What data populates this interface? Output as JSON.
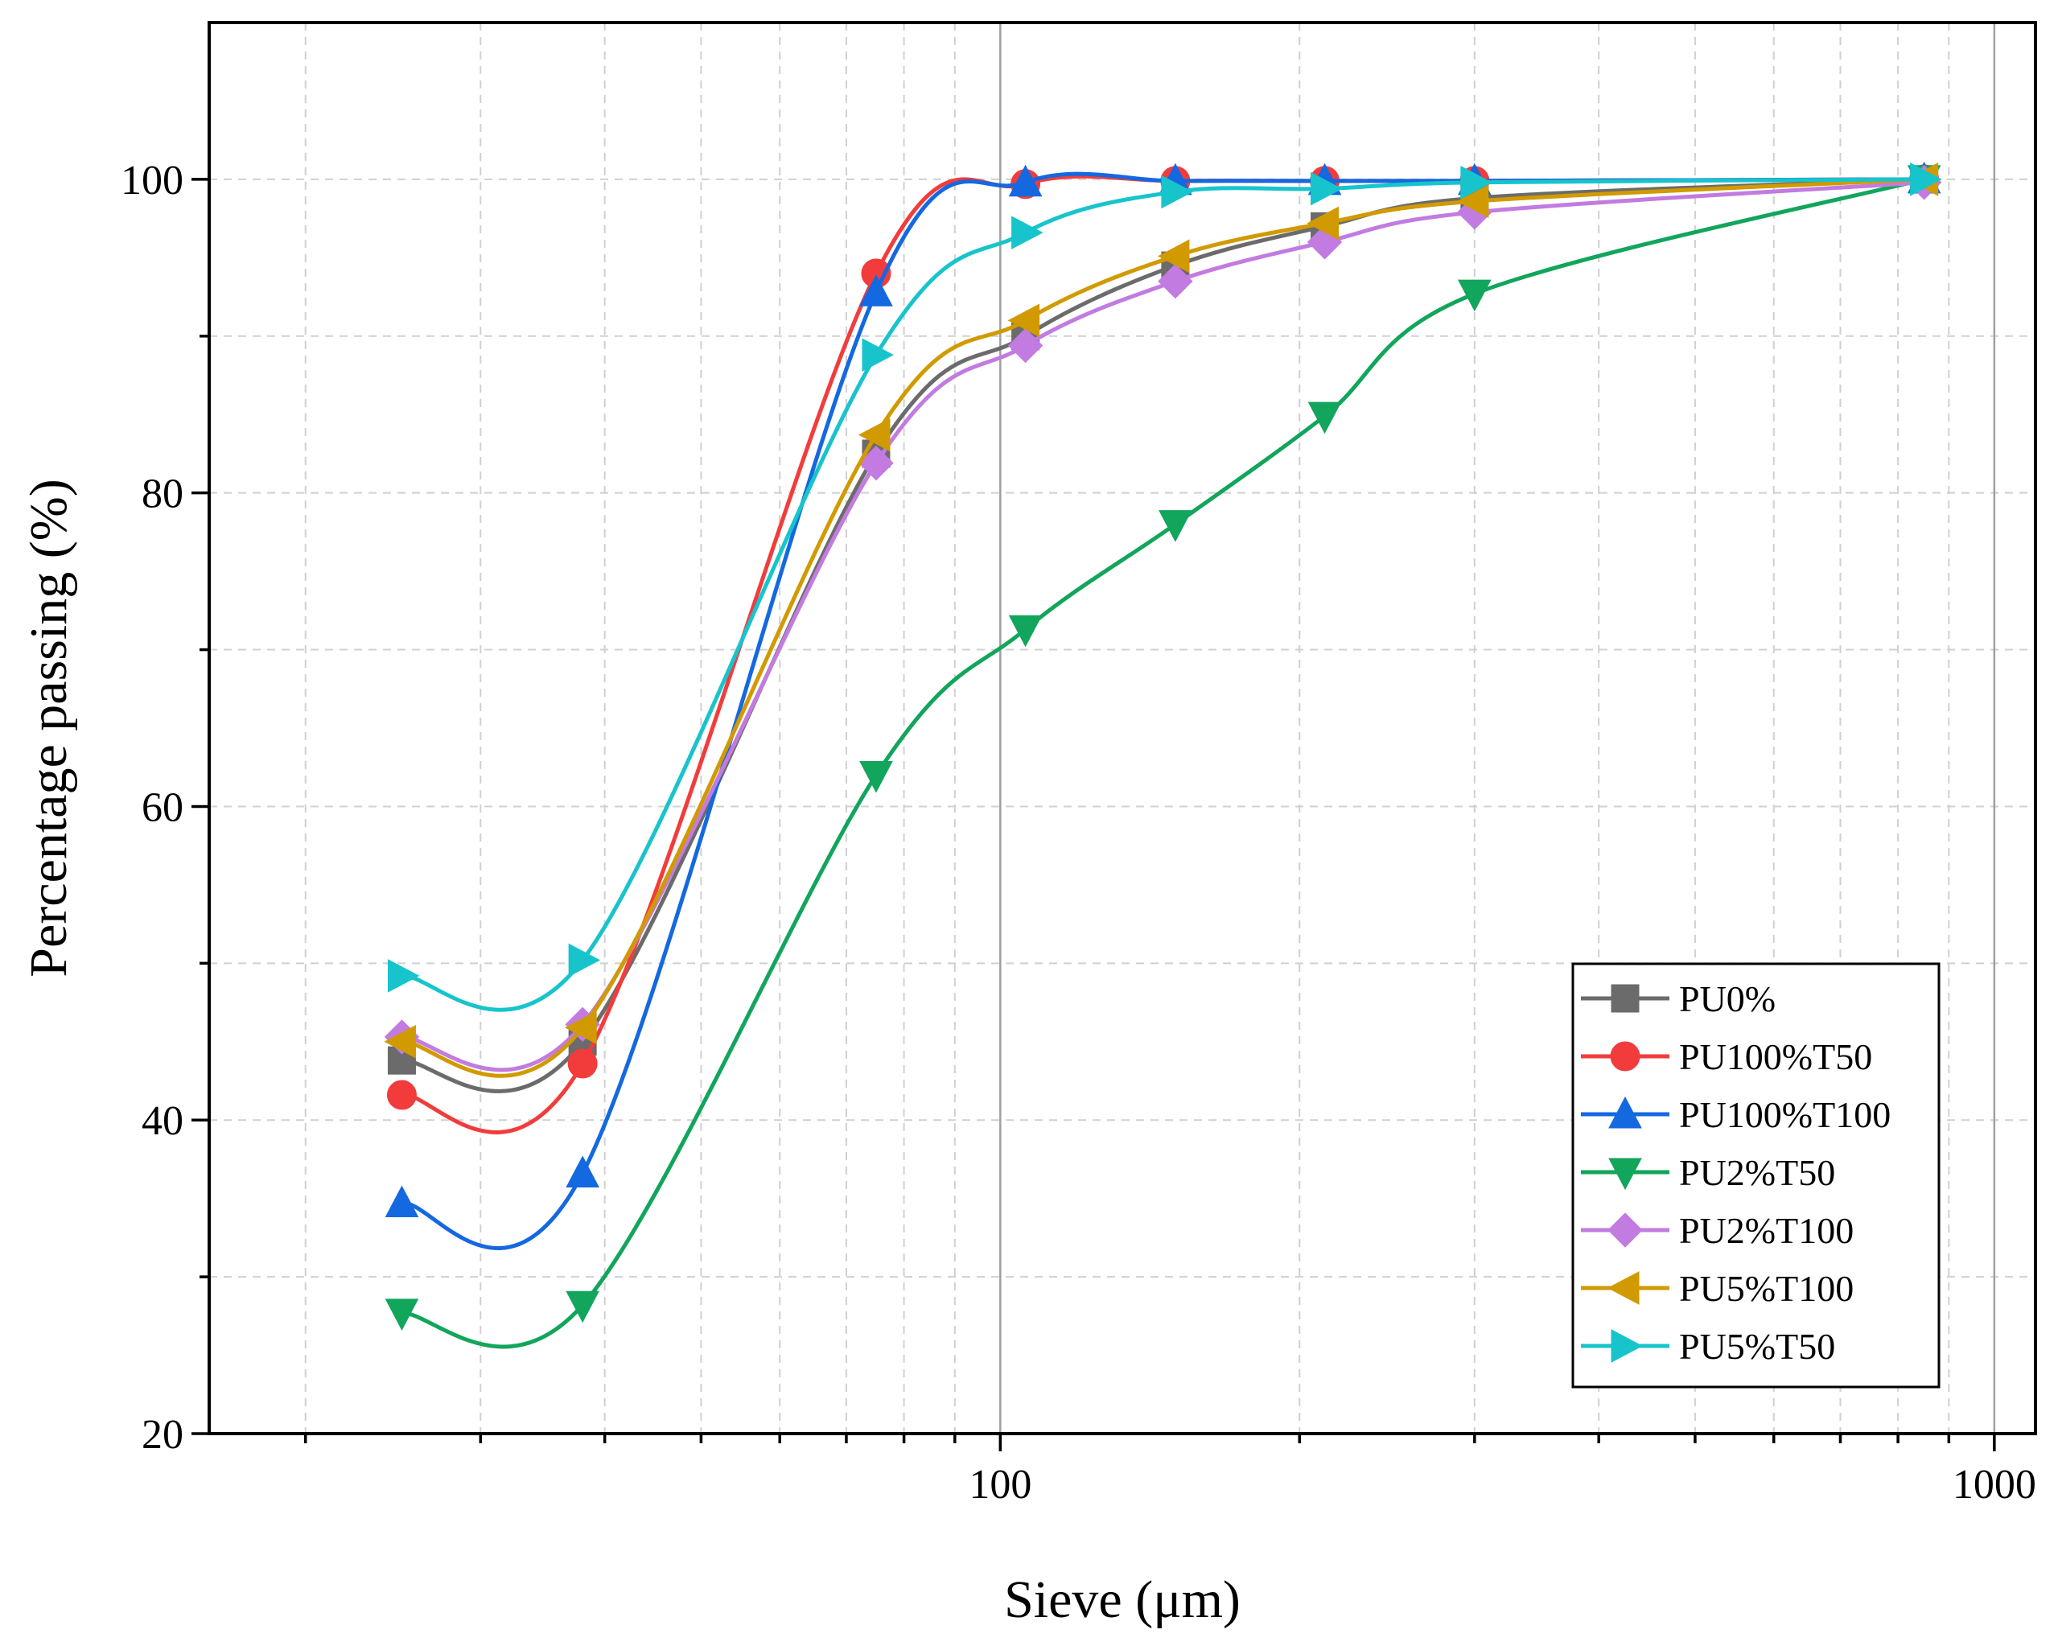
{
  "chart_data": {
    "type": "line",
    "title": "",
    "xlabel": "Sieve (μm)",
    "ylabel": "Percentage passing (%)",
    "xscale": "log",
    "xlim": [
      16,
      1100
    ],
    "ylim": [
      20,
      110
    ],
    "x_ticks": [
      100,
      1000
    ],
    "x_tick_labels": [
      "100",
      "1000"
    ],
    "y_ticks": [
      20,
      40,
      60,
      80,
      100
    ],
    "y_tick_labels": [
      "20",
      "40",
      "60",
      "80",
      "100"
    ],
    "grid": true,
    "legend_position": "bottom-right",
    "x": [
      25,
      38,
      75,
      106,
      150,
      212,
      300,
      850
    ],
    "series": [
      {
        "name": "PU0%",
        "marker": "square",
        "color": "#6b6b6b",
        "values": [
          43.8,
          45.0,
          82.5,
          90.0,
          94.5,
          97.0,
          98.8,
          100.0
        ]
      },
      {
        "name": "PU100%T50",
        "marker": "circle",
        "color": "#f23c3c",
        "values": [
          41.6,
          43.6,
          94.0,
          99.7,
          99.9,
          99.9,
          99.9,
          100.0
        ]
      },
      {
        "name": "PU100%T100",
        "marker": "triangle-up",
        "color": "#1468e0",
        "values": [
          34.7,
          36.6,
          92.8,
          99.8,
          99.9,
          99.9,
          99.9,
          100.0
        ]
      },
      {
        "name": "PU2%T50",
        "marker": "triangle-down",
        "color": "#12a55c",
        "values": [
          27.7,
          28.2,
          62.0,
          71.3,
          78.0,
          84.9,
          92.7,
          100.0
        ]
      },
      {
        "name": "PU2%T100",
        "marker": "diamond",
        "color": "#c27be0",
        "values": [
          45.3,
          46.1,
          81.9,
          89.4,
          93.5,
          96.0,
          97.9,
          99.8
        ]
      },
      {
        "name": "PU5%T100",
        "marker": "triangle-left",
        "color": "#d19a00",
        "values": [
          45.0,
          45.9,
          83.7,
          91.0,
          95.1,
          97.2,
          98.6,
          100.0
        ]
      },
      {
        "name": "PU5%T50",
        "marker": "triangle-right",
        "color": "#18c4cc",
        "values": [
          49.2,
          50.2,
          88.8,
          96.6,
          99.2,
          99.4,
          99.8,
          100.0
        ]
      }
    ]
  }
}
